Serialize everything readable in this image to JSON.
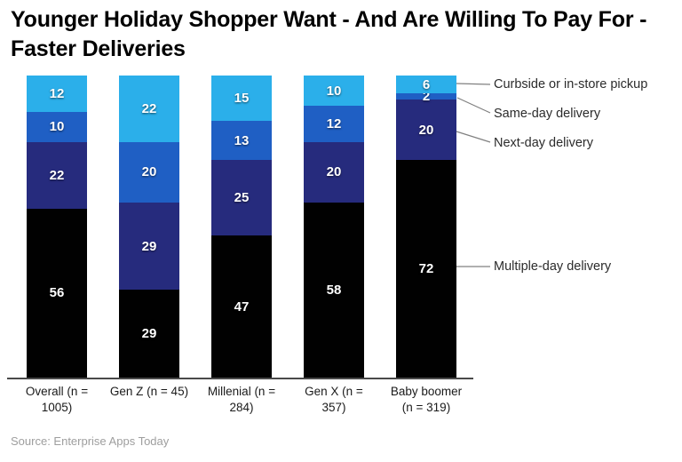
{
  "title": "Younger Holiday Shopper Want - And Are Willing To Pay For - Faster Deliveries",
  "source": "Source: Enterprise Apps Today",
  "chart_data": {
    "type": "bar",
    "stacked": true,
    "orientation": "vertical",
    "unit": "percent",
    "ylim": [
      0,
      100
    ],
    "grid": false,
    "legend_position": "right-callouts",
    "categories": [
      "Overall (n = 1005)",
      "Gen Z (n = 45)",
      "Millenial (n = 284)",
      "Gen X (n = 357)",
      "Baby boomer (n = 319)"
    ],
    "series": [
      {
        "name": "Multiple-day delivery",
        "color": "#010101",
        "values": [
          56,
          29,
          47,
          58,
          72
        ]
      },
      {
        "name": "Next-day delivery",
        "color": "#262B7D",
        "values": [
          22,
          29,
          25,
          20,
          20
        ]
      },
      {
        "name": "Same-day delivery",
        "color": "#1F5FC4",
        "values": [
          10,
          20,
          13,
          12,
          2
        ]
      },
      {
        "name": "Curbside or in-store pickup",
        "color": "#2BAFEA",
        "values": [
          12,
          22,
          15,
          10,
          6
        ]
      }
    ]
  },
  "legend": {
    "items": [
      {
        "label": "Curbside or in-store pickup"
      },
      {
        "label": "Same-day delivery"
      },
      {
        "label": "Next-day delivery"
      },
      {
        "label": "Multiple-day delivery"
      }
    ]
  },
  "colors": {
    "axis": "#4a4a4a",
    "callout_line": "#808080",
    "bar_value_text": "#ffffff",
    "source_text": "#9e9e9e"
  }
}
